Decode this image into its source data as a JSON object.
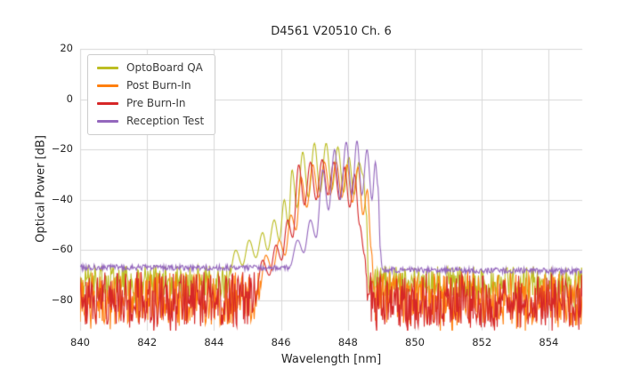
{
  "chart_data": {
    "type": "line",
    "title": "D4561 V20510 Ch. 6",
    "xlabel": "Wavelength [nm]",
    "ylabel": "Optical Power [dB]",
    "xlim": [
      840,
      855
    ],
    "ylim": [
      -92,
      20
    ],
    "x_ticks": [
      840,
      842,
      844,
      846,
      848,
      850,
      852,
      854
    ],
    "x_tick_labels": [
      "840",
      "842",
      "844",
      "846",
      "848",
      "850",
      "852",
      "854"
    ],
    "y_ticks": [
      20,
      0,
      -20,
      -40,
      -60,
      -80
    ],
    "y_tick_labels": [
      "20",
      "0",
      "−20",
      "−40",
      "−60",
      "−80"
    ],
    "grid": true,
    "grid_color": "#d8d8d8",
    "background": "#ffffff",
    "legend_position": "upper left",
    "series": [
      {
        "name": "OptoBoard QA",
        "color": "#bcbd22",
        "noise_floor": [
          [
            840,
            -72.5
          ],
          [
            855,
            -73
          ]
        ],
        "noise_amplitude": 6.5,
        "noise_spiky": true,
        "seed": 1,
        "envelope": [
          [
            844.4,
            -74
          ],
          [
            844.65,
            -60
          ],
          [
            844.85,
            -66
          ],
          [
            845.05,
            -56
          ],
          [
            845.25,
            -63
          ],
          [
            845.45,
            -53
          ],
          [
            845.6,
            -60
          ],
          [
            845.8,
            -48
          ],
          [
            845.95,
            -56
          ],
          [
            846.1,
            -40
          ],
          [
            846.22,
            -50
          ],
          [
            846.33,
            -28
          ],
          [
            846.48,
            -43
          ],
          [
            846.65,
            -21
          ],
          [
            846.82,
            -39
          ],
          [
            847.0,
            -17.5
          ],
          [
            847.17,
            -37
          ],
          [
            847.35,
            -17.5
          ],
          [
            847.52,
            -36
          ],
          [
            847.7,
            -19
          ],
          [
            847.87,
            -37
          ],
          [
            848.03,
            -23
          ],
          [
            848.18,
            -38
          ],
          [
            848.33,
            -25
          ],
          [
            848.45,
            -30
          ],
          [
            848.55,
            -45
          ],
          [
            848.62,
            -74
          ]
        ]
      },
      {
        "name": "Post Burn-In",
        "color": "#ff7f0e",
        "noise_floor": [
          [
            840,
            -79
          ],
          [
            855,
            -79.5
          ]
        ],
        "noise_amplitude": 10.5,
        "noise_spiky": true,
        "seed": 2,
        "envelope": [
          [
            845.3,
            -81
          ],
          [
            845.55,
            -62
          ],
          [
            845.75,
            -68
          ],
          [
            845.95,
            -56
          ],
          [
            846.12,
            -62
          ],
          [
            846.3,
            -46
          ],
          [
            846.45,
            -52
          ],
          [
            846.6,
            -31
          ],
          [
            846.77,
            -43
          ],
          [
            846.95,
            -26
          ],
          [
            847.12,
            -39
          ],
          [
            847.3,
            -25
          ],
          [
            847.47,
            -38
          ],
          [
            847.65,
            -25
          ],
          [
            847.82,
            -39
          ],
          [
            847.97,
            -26
          ],
          [
            848.13,
            -41
          ],
          [
            848.3,
            -27
          ],
          [
            848.45,
            -46
          ],
          [
            848.58,
            -36
          ],
          [
            848.7,
            -60
          ],
          [
            848.8,
            -81
          ]
        ]
      },
      {
        "name": "Pre Burn-In",
        "color": "#d62728",
        "noise_floor": [
          [
            840,
            -79.5
          ],
          [
            855,
            -80
          ]
        ],
        "noise_amplitude": 11,
        "noise_spiky": true,
        "seed": 3,
        "envelope": [
          [
            845.2,
            -82
          ],
          [
            845.45,
            -64
          ],
          [
            845.65,
            -70
          ],
          [
            845.85,
            -58
          ],
          [
            846.02,
            -64
          ],
          [
            846.2,
            -48
          ],
          [
            846.35,
            -55
          ],
          [
            846.53,
            -26
          ],
          [
            846.7,
            -42
          ],
          [
            846.88,
            -25
          ],
          [
            847.05,
            -40
          ],
          [
            847.23,
            -24
          ],
          [
            847.4,
            -38
          ],
          [
            847.58,
            -25
          ],
          [
            847.75,
            -40
          ],
          [
            847.9,
            -27
          ],
          [
            848.05,
            -43
          ],
          [
            848.2,
            -30
          ],
          [
            848.35,
            -50
          ],
          [
            848.5,
            -62
          ],
          [
            848.6,
            -82
          ]
        ]
      },
      {
        "name": "Reception Test",
        "color": "#9467bd",
        "noise_floor": [
          [
            840,
            -66.8
          ],
          [
            848.9,
            -67.2
          ],
          [
            849.05,
            -67.8
          ],
          [
            855,
            -68.3
          ]
        ],
        "noise_amplitude": 1.1,
        "noise_spiky": false,
        "seed": 4,
        "envelope": [
          [
            846.25,
            -67
          ],
          [
            846.5,
            -56
          ],
          [
            846.68,
            -61
          ],
          [
            846.88,
            -48
          ],
          [
            847.05,
            -55
          ],
          [
            847.25,
            -28
          ],
          [
            847.42,
            -44
          ],
          [
            847.6,
            -20
          ],
          [
            847.77,
            -40
          ],
          [
            847.95,
            -17
          ],
          [
            848.12,
            -38
          ],
          [
            848.27,
            -16.5
          ],
          [
            848.42,
            -38
          ],
          [
            848.57,
            -20
          ],
          [
            848.72,
            -40
          ],
          [
            848.82,
            -25
          ],
          [
            848.9,
            -35
          ],
          [
            848.97,
            -60
          ],
          [
            849.02,
            -67
          ]
        ]
      }
    ]
  }
}
